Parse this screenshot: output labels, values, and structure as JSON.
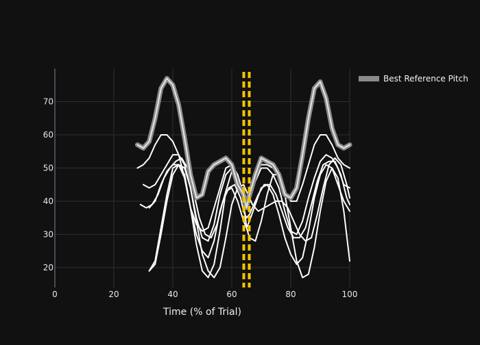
{
  "chart_data": {
    "type": "line",
    "xlabel": "Time (% of Trial)",
    "ylabel": "",
    "xlim": [
      0,
      100
    ],
    "ylim": [
      14,
      80
    ],
    "x_ticks": [
      0,
      20,
      40,
      60,
      80,
      100
    ],
    "y_ticks": [
      20,
      30,
      40,
      50,
      60,
      70
    ],
    "grid": true,
    "legend_position": "top-right",
    "legend": [
      {
        "label": "Best Reference Pitch",
        "color": "#8a8a8a"
      }
    ],
    "vertical_marker": {
      "x": 65,
      "color": "#f5c400",
      "style": "dashed"
    },
    "series": [
      {
        "name": "Best Reference Pitch",
        "color": "#8a8a8a",
        "x": [
          28,
          30,
          32,
          34,
          36,
          38,
          40,
          42,
          44,
          46,
          48,
          50,
          52,
          54,
          56,
          58,
          60,
          62,
          64,
          65,
          66,
          68,
          70,
          72,
          74,
          76,
          78,
          80,
          82,
          84,
          86,
          88,
          90,
          92,
          94,
          96,
          98,
          100
        ],
        "y": [
          57,
          56,
          58,
          65,
          74,
          77,
          75,
          69,
          59,
          48,
          41,
          42,
          49,
          51,
          52,
          53,
          51,
          45,
          42,
          38,
          42,
          48,
          53,
          52,
          51,
          48,
          42,
          41,
          44,
          54,
          65,
          74,
          76,
          71,
          62,
          57,
          56,
          57
        ]
      },
      {
        "color": "#ffffff",
        "x": [
          28,
          30,
          32,
          34,
          36,
          38,
          40,
          42,
          44,
          46,
          48,
          50,
          52,
          54,
          56,
          58,
          60,
          62,
          64,
          65,
          66,
          68,
          70,
          72,
          74,
          76,
          78,
          80,
          82,
          84,
          86,
          88,
          90,
          92,
          94,
          96,
          98,
          100
        ],
        "y": [
          50,
          51,
          53,
          57,
          60,
          60,
          58,
          54,
          47,
          38,
          33,
          31,
          32,
          38,
          44,
          50,
          51,
          48,
          42,
          40,
          43,
          49,
          51,
          51,
          50,
          47,
          43,
          40,
          40,
          45,
          51,
          57,
          60,
          60,
          57,
          53,
          51,
          50
        ]
      },
      {
        "color": "#ffffff",
        "x": [
          30,
          32,
          34,
          36,
          38,
          40,
          42,
          44,
          46,
          48,
          50,
          52,
          54,
          56,
          58,
          60,
          62,
          64,
          65,
          66,
          68,
          70,
          72,
          74,
          76,
          78,
          80,
          82,
          84,
          86,
          88,
          90,
          92,
          94,
          96,
          98,
          100
        ],
        "y": [
          45,
          44,
          45,
          48,
          51,
          54,
          54,
          51,
          44,
          35,
          29,
          28,
          33,
          42,
          48,
          50,
          47,
          40,
          38,
          40,
          46,
          50,
          50,
          48,
          44,
          37,
          31,
          30,
          34,
          41,
          47,
          52,
          54,
          53,
          50,
          45,
          44
        ]
      },
      {
        "color": "#ffffff",
        "x": [
          29,
          31,
          33,
          35,
          37,
          39,
          41,
          43,
          45,
          47,
          49,
          51,
          53,
          55,
          57,
          59,
          61,
          63,
          64,
          65,
          66,
          67,
          69,
          71,
          73,
          75,
          77,
          79,
          81,
          83,
          85,
          87,
          89,
          91,
          93,
          95,
          97,
          99,
          100
        ],
        "y": [
          39,
          38,
          39,
          42,
          47,
          50,
          52,
          53,
          50,
          43,
          35,
          30,
          29,
          33,
          40,
          44,
          45,
          41,
          37,
          35,
          36,
          38,
          42,
          45,
          45,
          42,
          37,
          32,
          29,
          29,
          32,
          39,
          46,
          51,
          52,
          52,
          48,
          41,
          39
        ]
      },
      {
        "color": "#ffffff",
        "x": [
          32,
          34,
          36,
          38,
          40,
          42,
          44,
          46,
          48,
          50,
          52,
          54,
          56,
          58,
          60,
          62,
          64,
          65,
          66,
          68,
          70,
          72,
          74,
          76,
          78,
          80,
          82,
          84,
          86,
          88,
          90,
          92,
          94,
          96,
          98,
          100
        ],
        "y": [
          38,
          40,
          45,
          49,
          51,
          51,
          47,
          38,
          30,
          25,
          23,
          28,
          37,
          43,
          44,
          40,
          34,
          32,
          34,
          39,
          44,
          45,
          42,
          36,
          29,
          24,
          21,
          23,
          31,
          41,
          48,
          51,
          50,
          45,
          40,
          37
        ]
      },
      {
        "color": "#ffffff",
        "x": [
          32,
          34,
          36,
          38,
          40,
          42,
          44,
          46,
          48,
          50,
          52,
          54,
          56,
          58,
          60,
          62,
          64,
          65,
          66,
          67,
          69,
          71,
          73,
          75,
          77,
          79,
          81,
          83,
          85,
          87,
          89,
          91,
          93,
          95,
          97,
          99,
          100
        ],
        "y": [
          19,
          21,
          30,
          40,
          48,
          51,
          50,
          44,
          34,
          24,
          19,
          17,
          20,
          29,
          39,
          44,
          45,
          43,
          41,
          39,
          37,
          38,
          39,
          40,
          40,
          38,
          34,
          30,
          28,
          29,
          36,
          44,
          51,
          53,
          51,
          45,
          41
        ]
      },
      {
        "color": "#ffffff",
        "x": [
          32,
          34,
          36,
          38,
          40,
          42,
          44,
          46,
          48,
          50,
          52,
          54,
          56,
          58,
          60,
          62,
          64,
          65,
          66,
          68,
          70,
          72,
          74,
          76,
          78,
          80,
          82,
          84,
          86,
          88,
          90,
          92,
          94,
          96,
          98,
          100
        ],
        "y": [
          19,
          22,
          32,
          42,
          50,
          51,
          48,
          38,
          27,
          19,
          17,
          21,
          31,
          43,
          49,
          48,
          40,
          32,
          29,
          28,
          34,
          42,
          48,
          48,
          42,
          32,
          22,
          17,
          18,
          26,
          37,
          46,
          50,
          47,
          37,
          22
        ]
      }
    ]
  }
}
